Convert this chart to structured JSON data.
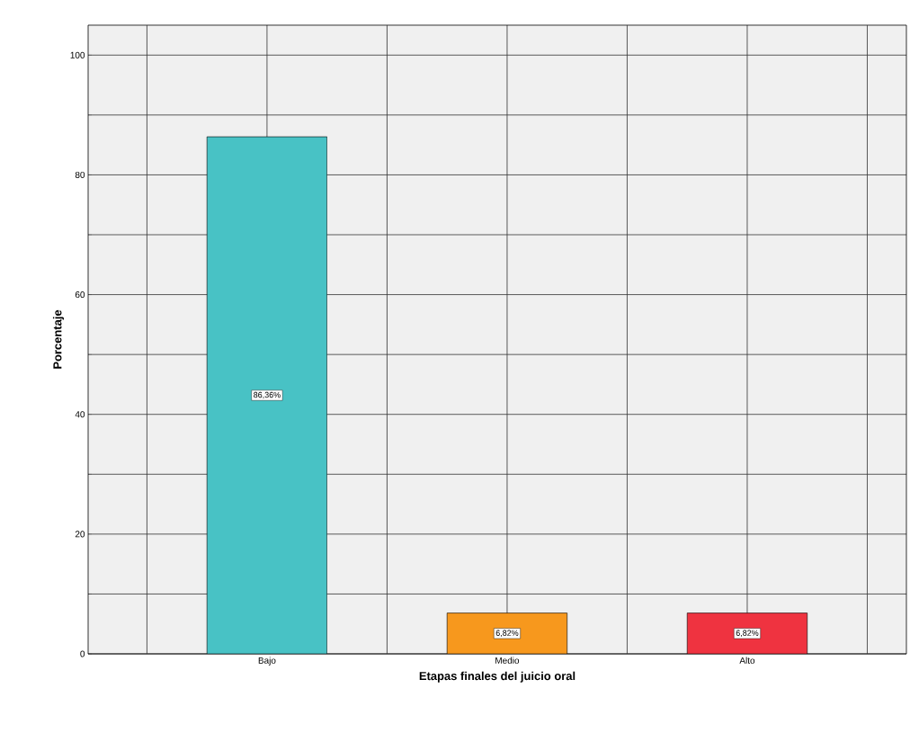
{
  "chart_data": {
    "type": "bar",
    "xlabel": "Etapas finales del juicio oral",
    "ylabel": "Porcentaje",
    "categories": [
      "Bajo",
      "Medio",
      "Alto"
    ],
    "values": [
      86.36,
      6.82,
      6.82
    ],
    "colors": [
      "#48c2c5",
      "#f7981d",
      "#ef3340"
    ],
    "value_labels": [
      "86,36%",
      "6,82%",
      "6,82%"
    ],
    "ylim": [
      0,
      105
    ],
    "yticks": [
      0,
      {
        "value": 10,
        "label": null
      },
      20,
      {
        "value": 30,
        "label": null
      },
      40,
      {
        "value": 50,
        "label": null
      },
      60,
      {
        "value": 70,
        "label": null
      },
      80,
      {
        "value": 90,
        "label": null
      },
      100
    ],
    "grid": true
  }
}
